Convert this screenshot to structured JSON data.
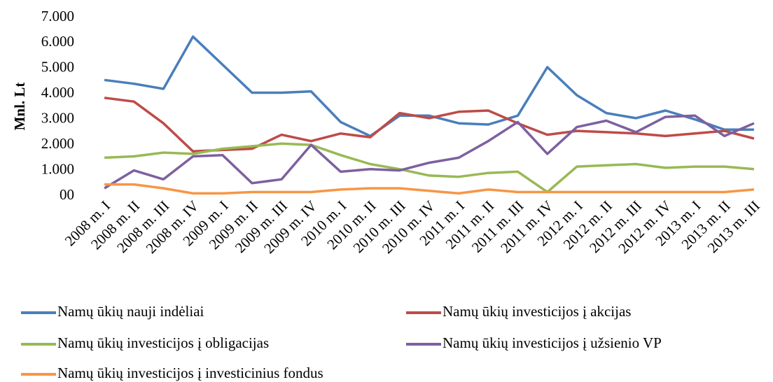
{
  "chart_data": {
    "type": "line",
    "y_label": "Mnl. Lt",
    "categories": [
      "2008 m. I",
      "2008 m. II",
      "2008 m. III",
      "2008 m. IV",
      "2009 m. I",
      "2009 m. II",
      "2009 m. III",
      "2009 m. IV",
      "2010 m. I",
      "2010 m. II",
      "2010 m. III",
      "2010 m. IV",
      "2011 m. I",
      "2011 m. II",
      "2011 m. III",
      "2011 m. IV",
      "2012 m. I",
      "2012 m. II",
      "2012 m. III",
      "2012 m. IV",
      "2013 m. I",
      "2013 m. II",
      "2013 m. III"
    ],
    "series": [
      {
        "name": "Namų ūkių nauji indėliai",
        "color": "#4a7ebb",
        "values": [
          4550,
          4400,
          4200,
          6250,
          5150,
          4050,
          4050,
          4100,
          2900,
          2350,
          3150,
          3150,
          2850,
          2800,
          3150,
          5050,
          3950,
          3250,
          3050,
          3350,
          3000,
          2600,
          2600
        ]
      },
      {
        "name": "Namų ūkių investicijos į akcijas",
        "color": "#be4b48",
        "values": [
          3850,
          3700,
          2850,
          1750,
          1800,
          1850,
          2400,
          2150,
          2450,
          2300,
          3250,
          3050,
          3300,
          3350,
          2850,
          2400,
          2550,
          2500,
          2450,
          2350,
          2450,
          2550,
          2250
        ]
      },
      {
        "name": "Namų ūkių investicijos į obligacijas",
        "color": "#98b954",
        "values": [
          1500,
          1550,
          1700,
          1650,
          1850,
          1950,
          2050,
          2000,
          1600,
          1250,
          1050,
          800,
          750,
          900,
          950,
          150,
          1150,
          1200,
          1250,
          1100,
          1150,
          1150,
          1050
        ]
      },
      {
        "name": "Namų ūkių investicijos į užsienio VP",
        "color": "#7d60a0",
        "values": [
          300,
          1000,
          650,
          1550,
          1600,
          500,
          650,
          2000,
          950,
          1050,
          1000,
          1300,
          1500,
          2150,
          2900,
          1650,
          2700,
          2950,
          2500,
          3100,
          3150,
          2350,
          2850
        ]
      },
      {
        "name": "Namų ūkių investicijos į investicinius fondus",
        "color": "#f79646",
        "values": [
          450,
          450,
          300,
          100,
          100,
          150,
          150,
          150,
          250,
          300,
          300,
          200,
          100,
          250,
          150,
          150,
          150,
          150,
          150,
          150,
          150,
          150,
          250
        ]
      }
    ],
    "ylim": [
      0,
      7000
    ],
    "yticks": [
      {
        "value": 0,
        "label": "00"
      },
      {
        "value": 1000,
        "label": "1.000"
      },
      {
        "value": 2000,
        "label": "2.000"
      },
      {
        "value": 3000,
        "label": "3.000"
      },
      {
        "value": 4000,
        "label": "4.000"
      },
      {
        "value": 5000,
        "label": "5.000"
      },
      {
        "value": 6000,
        "label": "6.000"
      },
      {
        "value": 7000,
        "label": "7.000"
      }
    ],
    "grid": false
  }
}
